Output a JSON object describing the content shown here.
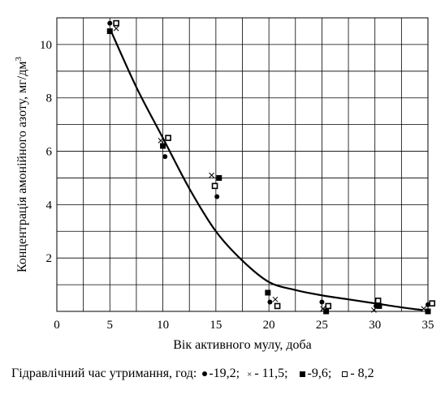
{
  "chart_data": {
    "type": "scatter",
    "title": "",
    "xlabel": "Вік активного мулу, доба",
    "ylabel": "Концентрація амонійного азоту, мг/дм",
    "ylabel_superscript": "3",
    "xlim": [
      0,
      35
    ],
    "ylim": [
      0,
      11
    ],
    "x_ticks": [
      0,
      5,
      10,
      15,
      20,
      25,
      30,
      35
    ],
    "x_tick_labels": [
      "0",
      "5",
      "10",
      "15",
      "20",
      "25",
      "30",
      "35"
    ],
    "y_ticks": [
      2,
      4,
      6,
      8,
      10
    ],
    "y_tick_labels": [
      "2",
      "4",
      "6",
      "8",
      "10"
    ],
    "grid": true,
    "series": [
      {
        "name": "19,2",
        "marker": "filled-circle",
        "points": [
          [
            5,
            10.8
          ],
          [
            10.2,
            5.8
          ],
          [
            15.1,
            4.3
          ],
          [
            20.1,
            0.35
          ],
          [
            25,
            0.35
          ],
          [
            30.1,
            0.2
          ],
          [
            35,
            0.25
          ]
        ]
      },
      {
        "name": "11,5",
        "marker": "cross",
        "points": [
          [
            5.6,
            10.6
          ],
          [
            9.8,
            6.4
          ],
          [
            14.6,
            5.1
          ],
          [
            20.6,
            0.45
          ],
          [
            25.1,
            0.1
          ],
          [
            29.9,
            0.05
          ],
          [
            34.6,
            0.1
          ]
        ]
      },
      {
        "name": "9,6",
        "marker": "filled-square",
        "points": [
          [
            5,
            10.5
          ],
          [
            10,
            6.2
          ],
          [
            15.3,
            5.0
          ],
          [
            19.9,
            0.7
          ],
          [
            25.4,
            0.0
          ],
          [
            30.4,
            0.2
          ],
          [
            35,
            0.0
          ]
        ]
      },
      {
        "name": "8,2",
        "marker": "open-square",
        "points": [
          [
            5.6,
            10.8
          ],
          [
            10.5,
            6.5
          ],
          [
            14.9,
            4.7
          ],
          [
            20.8,
            0.2
          ],
          [
            25.6,
            0.2
          ],
          [
            30.3,
            0.4
          ],
          [
            35.4,
            0.3
          ]
        ]
      }
    ],
    "trend_line": [
      [
        5,
        10.6
      ],
      [
        7.5,
        8.4
      ],
      [
        10,
        6.5
      ],
      [
        12.5,
        4.6
      ],
      [
        15,
        3.0
      ],
      [
        17.5,
        1.9
      ],
      [
        20,
        1.1
      ],
      [
        22.5,
        0.8
      ],
      [
        25,
        0.6
      ],
      [
        27.5,
        0.45
      ],
      [
        30,
        0.3
      ],
      [
        32.5,
        0.15
      ],
      [
        34.5,
        0.05
      ]
    ],
    "legend_placement": "bottom"
  },
  "legend": {
    "prefix": "Гідравлічний час утримання, год:",
    "items": [
      {
        "marker": "filled-circle",
        "label": "-19,2;"
      },
      {
        "marker": "cross",
        "label": "- 11,5;"
      },
      {
        "marker": "filled-square",
        "label": "-9,6;"
      },
      {
        "marker": "open-square",
        "label": "- 8,2"
      }
    ]
  }
}
